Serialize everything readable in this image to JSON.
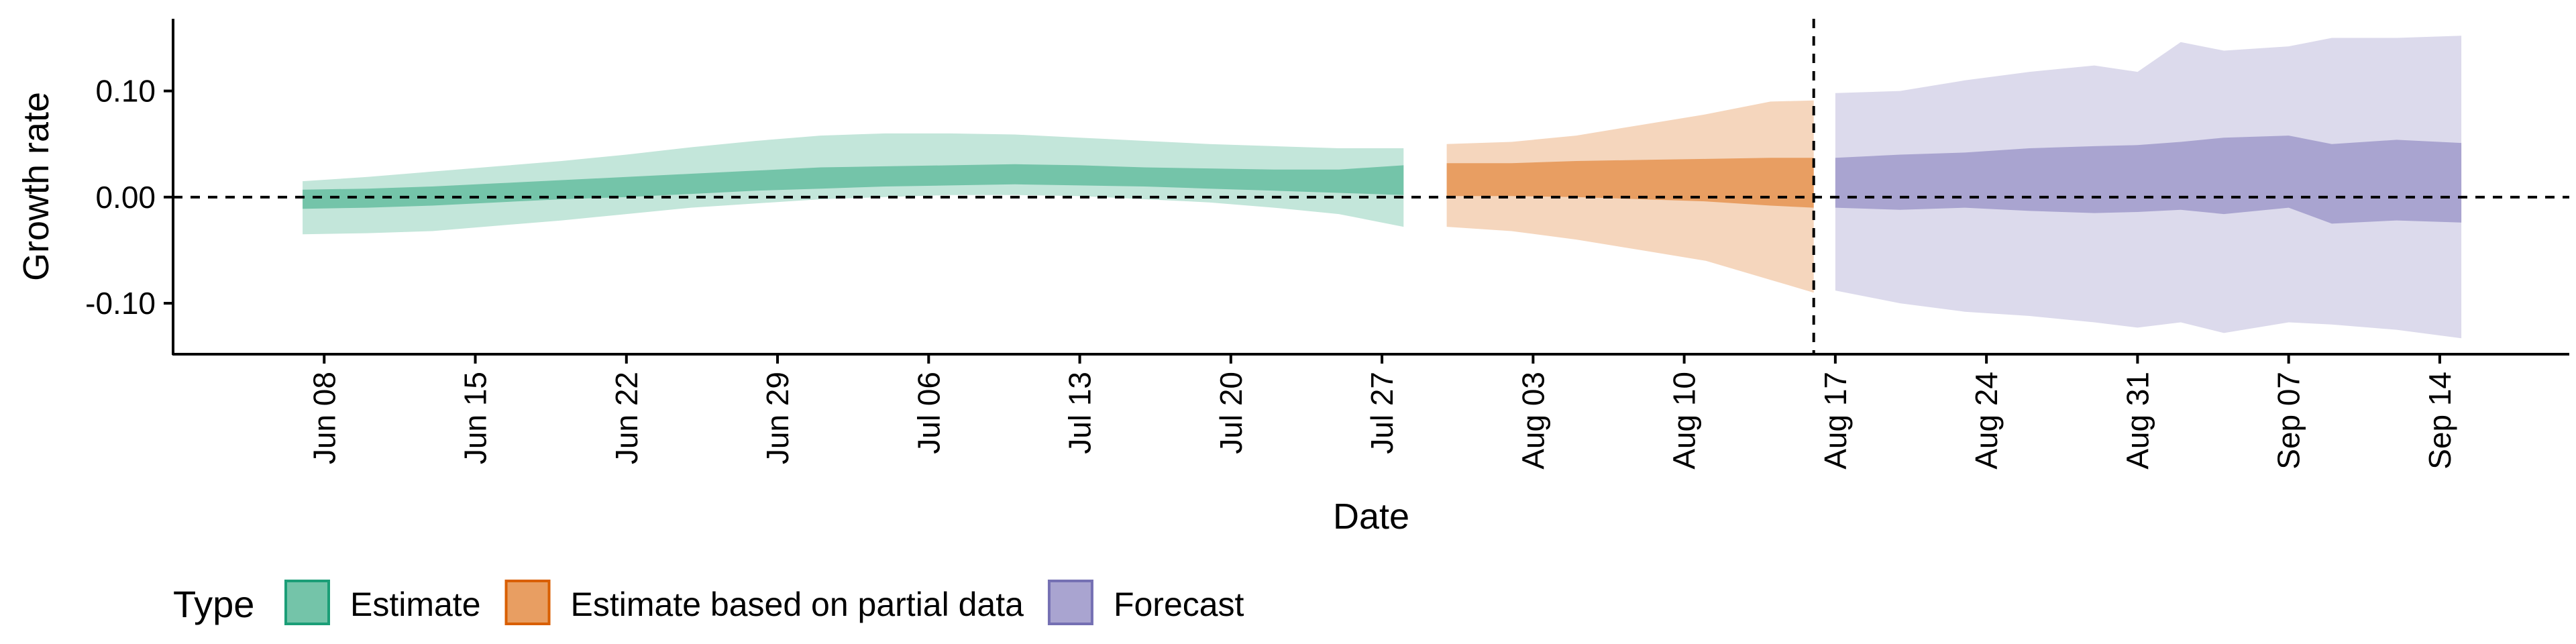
{
  "chart_data": {
    "type": "area",
    "title": "",
    "xlabel": "Date",
    "ylabel": "Growth rate",
    "y_ticks": [
      {
        "value": 0.1,
        "label": "0.10"
      },
      {
        "value": 0.0,
        "label": "0.00"
      },
      {
        "value": -0.1,
        "label": "-0.10"
      }
    ],
    "x_ticks": [
      {
        "date": "2020-06-08",
        "label": "Jun 08"
      },
      {
        "date": "2020-06-15",
        "label": "Jun 15"
      },
      {
        "date": "2020-06-22",
        "label": "Jun 22"
      },
      {
        "date": "2020-06-29",
        "label": "Jun 29"
      },
      {
        "date": "2020-07-06",
        "label": "Jul 06"
      },
      {
        "date": "2020-07-13",
        "label": "Jul 13"
      },
      {
        "date": "2020-07-20",
        "label": "Jul 20"
      },
      {
        "date": "2020-07-27",
        "label": "Jul 27"
      },
      {
        "date": "2020-08-03",
        "label": "Aug 03"
      },
      {
        "date": "2020-08-10",
        "label": "Aug 10"
      },
      {
        "date": "2020-08-17",
        "label": "Aug 17"
      },
      {
        "date": "2020-08-24",
        "label": "Aug 24"
      },
      {
        "date": "2020-08-31",
        "label": "Aug 31"
      },
      {
        "date": "2020-09-07",
        "label": "Sep 07"
      },
      {
        "date": "2020-09-14",
        "label": "Sep 14"
      }
    ],
    "x_range": [
      "2020-06-01",
      "2020-09-20"
    ],
    "y_range": [
      -0.148,
      0.168
    ],
    "reference_lines": {
      "horizontal_y": 0.0,
      "vertical_date": "2020-08-16"
    },
    "legend": {
      "title": "Type",
      "position": "bottom",
      "entries": [
        {
          "label": "Estimate",
          "fill": "#74c4a9",
          "stroke": "#1b9e77"
        },
        {
          "label": "Estimate based on partial data",
          "fill": "#e89e62",
          "stroke": "#d95f02"
        },
        {
          "label": "Forecast",
          "fill": "#a9a4d0",
          "stroke": "#7570b3"
        }
      ]
    },
    "series": [
      {
        "name": "Estimate",
        "inner_color": "#74c4a9",
        "outer_color": "#c3e6da",
        "points": [
          {
            "date": "2020-06-07",
            "lo90": -0.035,
            "lo50": -0.011,
            "hi50": 0.007,
            "hi90": 0.015
          },
          {
            "date": "2020-06-10",
            "lo90": -0.034,
            "lo50": -0.01,
            "hi50": 0.008,
            "hi90": 0.019
          },
          {
            "date": "2020-06-13",
            "lo90": -0.032,
            "lo50": -0.008,
            "hi50": 0.01,
            "hi90": 0.024
          },
          {
            "date": "2020-06-16",
            "lo90": -0.027,
            "lo50": -0.005,
            "hi50": 0.013,
            "hi90": 0.029
          },
          {
            "date": "2020-06-19",
            "lo90": -0.022,
            "lo50": -0.002,
            "hi50": 0.016,
            "hi90": 0.034
          },
          {
            "date": "2020-06-22",
            "lo90": -0.016,
            "lo50": 0.0,
            "hi50": 0.019,
            "hi90": 0.04
          },
          {
            "date": "2020-06-25",
            "lo90": -0.01,
            "lo50": 0.003,
            "hi50": 0.022,
            "hi90": 0.047
          },
          {
            "date": "2020-06-28",
            "lo90": -0.006,
            "lo50": 0.006,
            "hi50": 0.025,
            "hi90": 0.053
          },
          {
            "date": "2020-07-01",
            "lo90": -0.002,
            "lo50": 0.008,
            "hi50": 0.028,
            "hi90": 0.058
          },
          {
            "date": "2020-07-04",
            "lo90": 0.0,
            "lo50": 0.01,
            "hi50": 0.029,
            "hi90": 0.06
          },
          {
            "date": "2020-07-07",
            "lo90": 0.002,
            "lo50": 0.011,
            "hi50": 0.03,
            "hi90": 0.06
          },
          {
            "date": "2020-07-10",
            "lo90": 0.002,
            "lo50": 0.012,
            "hi50": 0.031,
            "hi90": 0.059
          },
          {
            "date": "2020-07-13",
            "lo90": 0.001,
            "lo50": 0.011,
            "hi50": 0.03,
            "hi90": 0.056
          },
          {
            "date": "2020-07-16",
            "lo90": -0.002,
            "lo50": 0.01,
            "hi50": 0.028,
            "hi90": 0.053
          },
          {
            "date": "2020-07-19",
            "lo90": -0.005,
            "lo50": 0.008,
            "hi50": 0.027,
            "hi90": 0.05
          },
          {
            "date": "2020-07-22",
            "lo90": -0.01,
            "lo50": 0.006,
            "hi50": 0.026,
            "hi90": 0.048
          },
          {
            "date": "2020-07-25",
            "lo90": -0.016,
            "lo50": 0.004,
            "hi50": 0.026,
            "hi90": 0.046
          },
          {
            "date": "2020-07-28",
            "lo90": -0.028,
            "lo50": 0.002,
            "hi50": 0.03,
            "hi90": 0.046
          }
        ]
      },
      {
        "name": "Estimate based on partial data",
        "inner_color": "#e89e62",
        "outer_color": "#f5d6bd",
        "points": [
          {
            "date": "2020-07-30",
            "lo90": -0.028,
            "lo50": 0.001,
            "hi50": 0.032,
            "hi90": 0.05
          },
          {
            "date": "2020-08-02",
            "lo90": -0.032,
            "lo50": 0.001,
            "hi50": 0.032,
            "hi90": 0.052
          },
          {
            "date": "2020-08-05",
            "lo90": -0.04,
            "lo50": 0.0,
            "hi50": 0.034,
            "hi90": 0.058
          },
          {
            "date": "2020-08-08",
            "lo90": -0.05,
            "lo50": -0.002,
            "hi50": 0.035,
            "hi90": 0.068
          },
          {
            "date": "2020-08-11",
            "lo90": -0.06,
            "lo50": -0.004,
            "hi50": 0.036,
            "hi90": 0.078
          },
          {
            "date": "2020-08-14",
            "lo90": -0.078,
            "lo50": -0.008,
            "hi50": 0.037,
            "hi90": 0.09
          },
          {
            "date": "2020-08-16",
            "lo90": -0.09,
            "lo50": -0.01,
            "hi50": 0.037,
            "hi90": 0.091
          }
        ]
      },
      {
        "name": "Forecast",
        "inner_color": "#a9a4d0",
        "outer_color": "#dcdaec",
        "points": [
          {
            "date": "2020-08-17",
            "lo90": -0.088,
            "lo50": -0.01,
            "hi50": 0.037,
            "hi90": 0.098
          },
          {
            "date": "2020-08-20",
            "lo90": -0.1,
            "lo50": -0.012,
            "hi50": 0.04,
            "hi90": 0.1
          },
          {
            "date": "2020-08-23",
            "lo90": -0.108,
            "lo50": -0.01,
            "hi50": 0.042,
            "hi90": 0.11
          },
          {
            "date": "2020-08-26",
            "lo90": -0.112,
            "lo50": -0.013,
            "hi50": 0.046,
            "hi90": 0.118
          },
          {
            "date": "2020-08-29",
            "lo90": -0.118,
            "lo50": -0.015,
            "hi50": 0.048,
            "hi90": 0.124
          },
          {
            "date": "2020-08-31",
            "lo90": -0.123,
            "lo50": -0.014,
            "hi50": 0.049,
            "hi90": 0.118
          },
          {
            "date": "2020-09-02",
            "lo90": -0.118,
            "lo50": -0.012,
            "hi50": 0.052,
            "hi90": 0.146
          },
          {
            "date": "2020-09-04",
            "lo90": -0.128,
            "lo50": -0.016,
            "hi50": 0.056,
            "hi90": 0.138
          },
          {
            "date": "2020-09-07",
            "lo90": -0.118,
            "lo50": -0.01,
            "hi50": 0.058,
            "hi90": 0.142
          },
          {
            "date": "2020-09-09",
            "lo90": -0.12,
            "lo50": -0.025,
            "hi50": 0.05,
            "hi90": 0.15
          },
          {
            "date": "2020-09-12",
            "lo90": -0.125,
            "lo50": -0.022,
            "hi50": 0.054,
            "hi90": 0.15
          },
          {
            "date": "2020-09-15",
            "lo90": -0.133,
            "lo50": -0.024,
            "hi50": 0.051,
            "hi90": 0.152
          }
        ]
      }
    ]
  }
}
